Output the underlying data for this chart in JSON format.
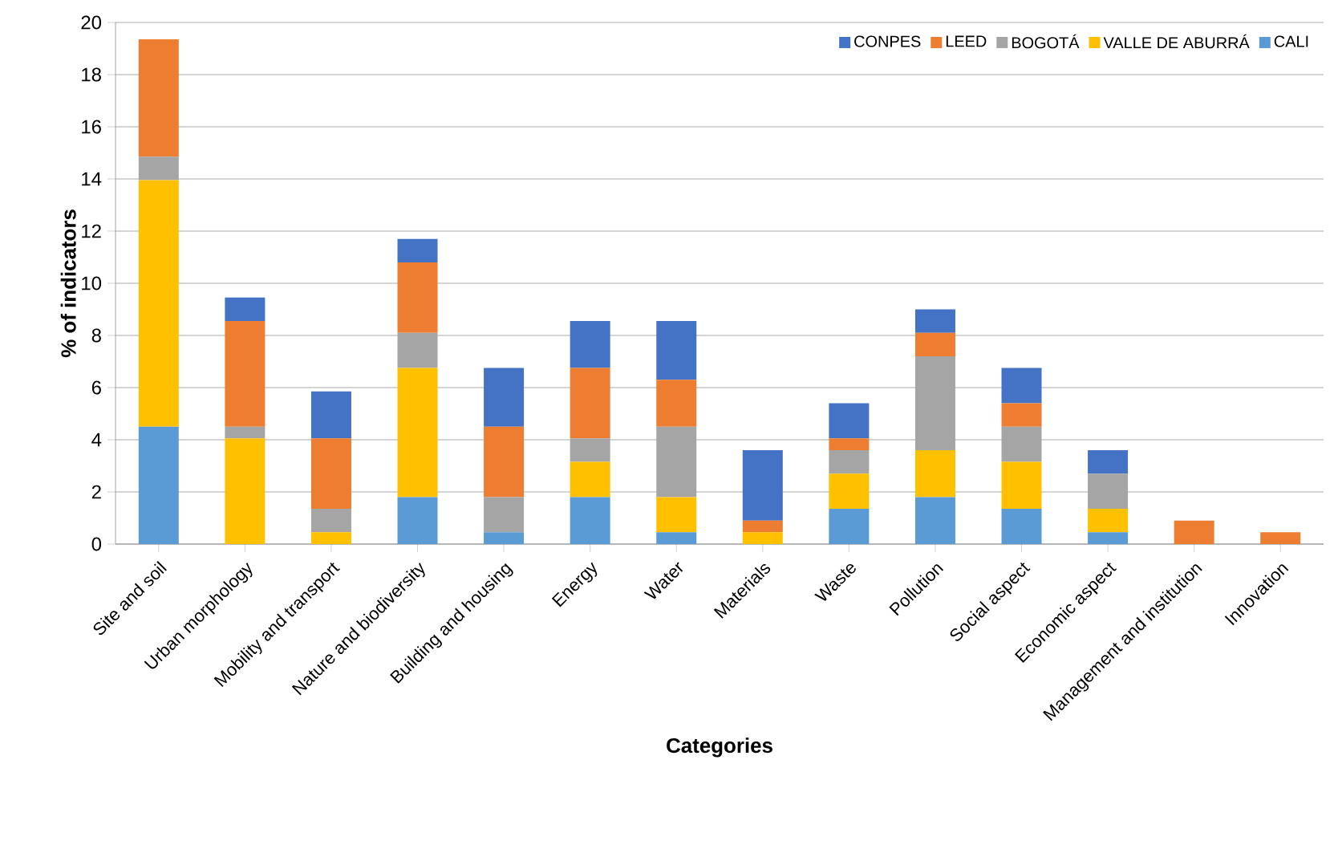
{
  "chart_data": {
    "type": "bar",
    "stacked": true,
    "xlabel": "Categories",
    "ylabel": "% of indicators",
    "categories": [
      "Site and soil",
      "Urban morphology",
      "Mobility and transport",
      "Nature and biodiversity",
      "Building and housing",
      "Energy",
      "Water",
      "Materials",
      "Waste",
      "Pollution",
      "Social aspect",
      "Economic aspect",
      "Management and institution",
      "Innovation"
    ],
    "series": [
      {
        "name": "CALI",
        "color": "#5b9bd5",
        "values": [
          4.5,
          0,
          0,
          1.8,
          0.45,
          1.8,
          0.45,
          0,
          1.35,
          1.8,
          1.35,
          0.45,
          0,
          0
        ]
      },
      {
        "name": "VALLE DE ABURRÁ",
        "color": "#ffc000",
        "values": [
          9.45,
          4.05,
          0.45,
          4.95,
          0,
          1.35,
          1.35,
          0.45,
          1.35,
          1.8,
          1.8,
          0.9,
          0,
          0
        ]
      },
      {
        "name": "BOGOTÁ",
        "color": "#a5a5a5",
        "values": [
          0.9,
          0.45,
          0.9,
          1.35,
          1.35,
          0.9,
          2.7,
          0,
          0.9,
          3.6,
          1.35,
          1.35,
          0,
          0
        ]
      },
      {
        "name": "LEED",
        "color": "#ed7d31",
        "values": [
          4.5,
          4.05,
          2.7,
          2.7,
          2.7,
          2.7,
          1.8,
          0.45,
          0.45,
          0.9,
          0.9,
          0,
          0.9,
          0.45
        ]
      },
      {
        "name": "CONPES",
        "color": "#4472c4",
        "values": [
          0,
          0.9,
          1.8,
          0.9,
          2.25,
          1.8,
          2.25,
          2.7,
          1.35,
          0.9,
          1.35,
          0.9,
          0,
          0
        ]
      }
    ],
    "ylim": [
      0,
      20
    ],
    "yticks": [
      0,
      2,
      4,
      6,
      8,
      10,
      12,
      14,
      16,
      18,
      20
    ],
    "grid": "y",
    "legend": "top right"
  }
}
